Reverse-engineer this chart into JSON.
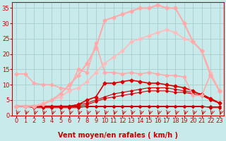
{
  "xlabel": "Vent moyen/en rafales ( km/h )",
  "xlim": [
    -0.5,
    23.5
  ],
  "ylim": [
    0,
    37
  ],
  "yticks": [
    0,
    5,
    10,
    15,
    20,
    25,
    30,
    35
  ],
  "xticks": [
    0,
    1,
    2,
    3,
    4,
    5,
    6,
    7,
    8,
    9,
    10,
    11,
    12,
    13,
    14,
    15,
    16,
    17,
    18,
    19,
    20,
    21,
    22,
    23
  ],
  "bg_color": "#c8eaea",
  "grid_color": "#a0c8c8",
  "series": [
    {
      "x": [
        0,
        1,
        2,
        3,
        4,
        5,
        6,
        7,
        8,
        9,
        10,
        11,
        12,
        13,
        14,
        15,
        16,
        17,
        18,
        19,
        20,
        21,
        22,
        23
      ],
      "y": [
        3,
        3,
        3,
        3,
        3,
        3,
        3,
        3,
        3,
        3,
        3,
        3,
        3,
        3,
        3,
        3,
        3,
        3,
        3,
        3,
        3,
        3,
        3,
        3
      ],
      "color": "#cc0000",
      "lw": 0.8,
      "marker": "D",
      "ms": 1.8
    },
    {
      "x": [
        0,
        1,
        2,
        3,
        4,
        5,
        6,
        7,
        8,
        9,
        10,
        11,
        12,
        13,
        14,
        15,
        16,
        17,
        18,
        19,
        20,
        21,
        22,
        23
      ],
      "y": [
        3,
        3,
        2.5,
        2.5,
        2.5,
        2.5,
        2.5,
        2.5,
        3,
        3,
        3,
        3,
        3,
        3,
        3,
        3,
        3,
        3,
        3,
        3,
        3,
        3,
        2.5,
        2.5
      ],
      "color": "#cc0000",
      "lw": 0.8,
      "marker": "D",
      "ms": 1.8
    },
    {
      "x": [
        0,
        1,
        2,
        3,
        4,
        5,
        6,
        7,
        8,
        9,
        10,
        11,
        12,
        13,
        14,
        15,
        16,
        17,
        18,
        19,
        20,
        21,
        22,
        23
      ],
      "y": [
        3,
        3,
        3,
        3,
        3,
        3,
        3,
        3,
        3.5,
        4.5,
        5.5,
        6,
        6.5,
        7,
        7.5,
        8,
        8,
        8,
        7.5,
        7.5,
        7,
        6.5,
        5,
        4
      ],
      "color": "#cc0000",
      "lw": 0.8,
      "marker": "D",
      "ms": 1.8
    },
    {
      "x": [
        0,
        1,
        2,
        3,
        4,
        5,
        6,
        7,
        8,
        9,
        10,
        11,
        12,
        13,
        14,
        15,
        16,
        17,
        18,
        19,
        20,
        21,
        22,
        23
      ],
      "y": [
        3,
        3,
        3,
        3,
        3,
        3,
        3,
        3.5,
        4,
        5,
        6,
        7,
        7.5,
        8,
        8.5,
        9,
        9,
        9,
        8.5,
        8,
        7.5,
        7,
        5.5,
        4
      ],
      "color": "#cc0000",
      "lw": 0.8,
      "marker": "D",
      "ms": 1.8
    },
    {
      "x": [
        0,
        1,
        2,
        3,
        4,
        5,
        6,
        7,
        8,
        9,
        10,
        11,
        12,
        13,
        14,
        15,
        16,
        17,
        18,
        19,
        20,
        21,
        22,
        23
      ],
      "y": [
        3,
        3,
        3,
        3,
        3,
        3,
        3,
        3.5,
        5,
        6,
        10.5,
        10.5,
        11,
        11.5,
        11,
        10.5,
        10.5,
        10,
        9.5,
        9,
        8,
        6.5,
        5.5,
        4
      ],
      "color": "#dd0000",
      "lw": 1.2,
      "marker": "D",
      "ms": 2.5
    },
    {
      "x": [
        0,
        1,
        2,
        3,
        4,
        5,
        6,
        7,
        8,
        9,
        10,
        11,
        12,
        13,
        14,
        15,
        16,
        17,
        18,
        19,
        20,
        21,
        22,
        23
      ],
      "y": [
        13.5,
        13.5,
        10.5,
        10,
        10,
        9,
        8.5,
        15,
        14,
        23.5,
        14,
        14,
        13.5,
        14,
        13.5,
        14,
        13.5,
        13,
        13,
        12.5,
        6.5,
        6.5,
        13.5,
        8
      ],
      "color": "#ffaaaa",
      "lw": 1.2,
      "marker": "D",
      "ms": 2.5
    },
    {
      "x": [
        0,
        1,
        2,
        3,
        4,
        5,
        6,
        7,
        8,
        9,
        10,
        11,
        12,
        13,
        14,
        15,
        16,
        17,
        18,
        19,
        20,
        21,
        22,
        23
      ],
      "y": [
        3,
        3,
        3,
        4,
        5,
        6,
        8,
        9,
        11,
        14,
        17,
        19,
        21,
        24,
        25,
        26,
        27,
        28,
        27,
        25,
        24,
        21,
        14,
        8
      ],
      "color": "#ffbbbb",
      "lw": 1.2,
      "marker": "D",
      "ms": 2.5
    },
    {
      "x": [
        0,
        1,
        2,
        3,
        4,
        5,
        6,
        7,
        8,
        9,
        10,
        11,
        12,
        13,
        14,
        15,
        16,
        17,
        18,
        19,
        20,
        21,
        22,
        23
      ],
      "y": [
        3,
        3,
        3,
        3.5,
        5,
        7,
        10,
        13,
        17,
        22,
        31,
        32,
        33,
        34,
        35,
        35,
        36,
        35,
        35,
        30,
        24,
        21,
        13,
        8
      ],
      "color": "#ffaaaa",
      "lw": 1.5,
      "marker": "D",
      "ms": 2.8
    }
  ],
  "arrow_color": "#cc0000",
  "xlabel_color": "#cc0000",
  "xlabel_fontsize": 7,
  "tick_color": "#cc0000",
  "tick_fontsize": 6
}
